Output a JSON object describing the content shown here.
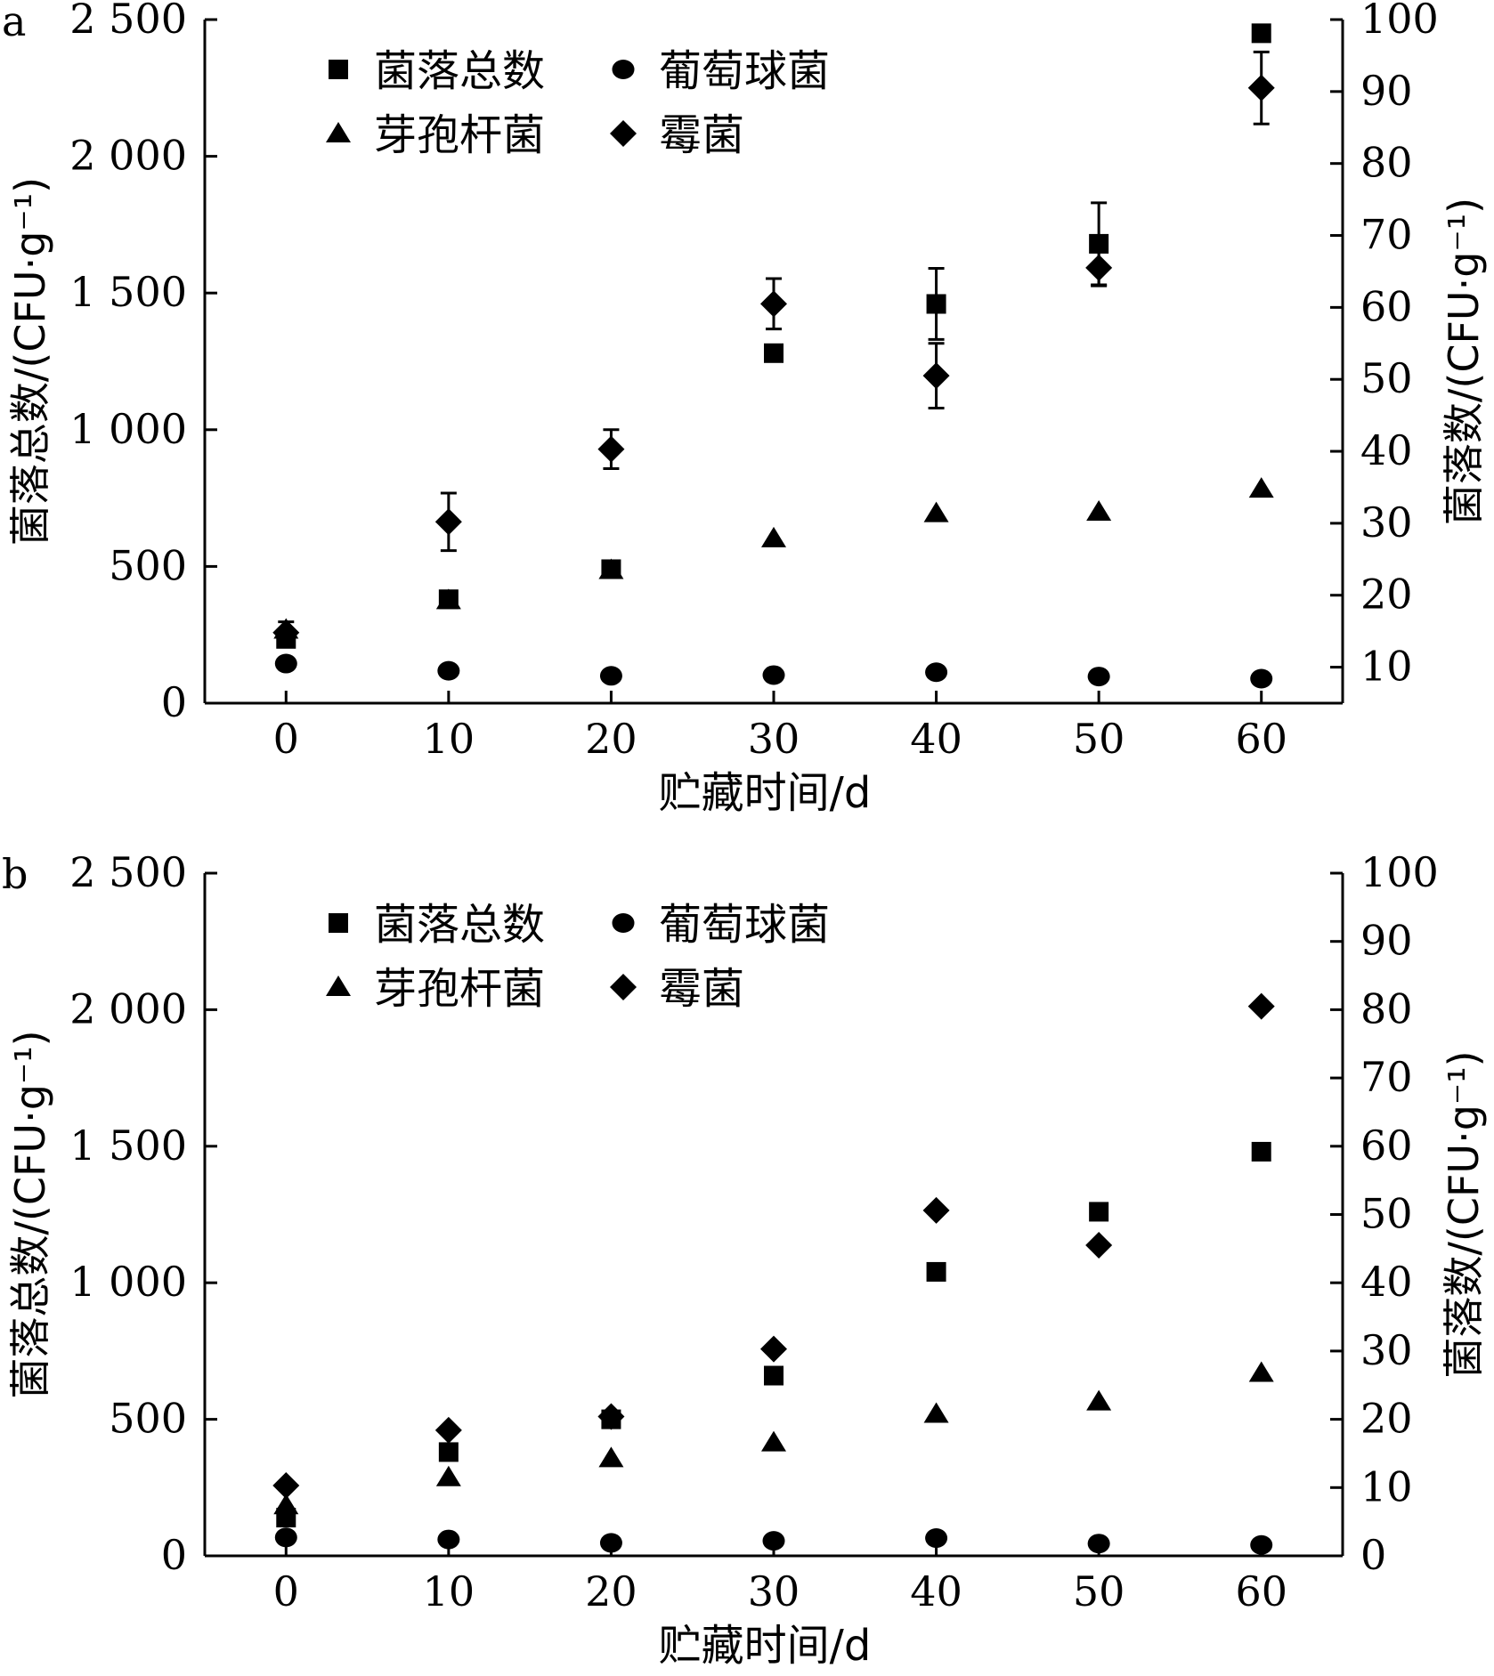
{
  "chart_data": [
    {
      "panel_label": "a",
      "type": "scatter",
      "title": "",
      "xlabel": "贮藏时间/d",
      "ylabel_left": "菌落总数/(CFU·g⁻¹)",
      "ylabel_right": "菌落数/(CFU·g⁻¹)",
      "xlim": [
        -5,
        65
      ],
      "xticks": [
        0,
        10,
        20,
        30,
        40,
        50,
        60
      ],
      "ylim_left": [
        0,
        2500
      ],
      "yticks_left": [
        0,
        500,
        1000,
        1500,
        2000,
        2500
      ],
      "ytick_labels_left": [
        "0",
        "500",
        "1 000",
        "1 500",
        "2 000",
        "2 500"
      ],
      "ylim_right": [
        5,
        100
      ],
      "yticks_right": [
        10,
        20,
        30,
        40,
        50,
        60,
        70,
        80,
        90,
        100
      ],
      "ytick_labels_right": [
        "10",
        "20",
        "30",
        "40",
        "50",
        "60",
        "70",
        "80",
        "90",
        "100"
      ],
      "legend_position": "top-left",
      "grid": false,
      "series": [
        {
          "name": "菌落总数",
          "marker": "square",
          "axis": "left",
          "x": [
            0,
            10,
            20,
            30,
            40,
            50,
            60
          ],
          "y": [
            235,
            380,
            490,
            1280,
            1460,
            1680,
            2450
          ],
          "err": [
            null,
            null,
            null,
            null,
            130,
            150,
            null
          ]
        },
        {
          "name": "葡萄球菌",
          "marker": "circle",
          "axis": "right",
          "x": [
            0,
            10,
            20,
            30,
            40,
            50,
            60
          ],
          "y": [
            10.5,
            9.5,
            8.8,
            8.9,
            9.3,
            8.7,
            8.4
          ],
          "err": [
            null,
            null,
            null,
            null,
            null,
            null,
            null
          ]
        },
        {
          "name": "芽孢杆菌",
          "marker": "triangle",
          "axis": "right",
          "x": [
            0,
            10,
            20,
            30,
            40,
            50,
            60
          ],
          "y": [
            15.2,
            19.3,
            23.5,
            27.9,
            31.4,
            31.6,
            34.8
          ],
          "err": [
            null,
            null,
            null,
            null,
            null,
            null,
            null
          ]
        },
        {
          "name": "霉菌",
          "marker": "diamond",
          "axis": "right",
          "x": [
            0,
            10,
            20,
            30,
            40,
            50,
            60
          ],
          "y": [
            14.8,
            30.2,
            40.3,
            60.5,
            50.5,
            65.5,
            90.5
          ],
          "err": [
            1.5,
            4.0,
            2.7,
            3.5,
            4.5,
            2.5,
            5.0
          ]
        }
      ]
    },
    {
      "panel_label": "b",
      "type": "scatter",
      "title": "",
      "xlabel": "贮藏时间/d",
      "ylabel_left": "菌落总数/(CFU·g⁻¹)",
      "ylabel_right": "菌落数/(CFU·g⁻¹)",
      "xlim": [
        -5,
        65
      ],
      "xticks": [
        0,
        10,
        20,
        30,
        40,
        50,
        60
      ],
      "ylim_left": [
        0,
        2500
      ],
      "yticks_left": [
        0,
        500,
        1000,
        1500,
        2000,
        2500
      ],
      "ytick_labels_left": [
        "0",
        "500",
        "1 000",
        "1 500",
        "2 000",
        "2 500"
      ],
      "ylim_right": [
        0,
        100
      ],
      "yticks_right": [
        0,
        10,
        20,
        30,
        40,
        50,
        60,
        70,
        80,
        90,
        100
      ],
      "ytick_labels_right": [
        "0",
        "10",
        "20",
        "30",
        "40",
        "50",
        "60",
        "70",
        "80",
        "90",
        "100"
      ],
      "legend_position": "top-left",
      "grid": false,
      "series": [
        {
          "name": "菌落总数",
          "marker": "square",
          "axis": "left",
          "x": [
            0,
            10,
            20,
            30,
            40,
            50,
            60
          ],
          "y": [
            140,
            380,
            500,
            660,
            1040,
            1260,
            1480
          ],
          "err": [
            null,
            null,
            null,
            null,
            null,
            null,
            null
          ]
        },
        {
          "name": "葡萄球菌",
          "marker": "circle",
          "axis": "right",
          "x": [
            0,
            10,
            20,
            30,
            40,
            50,
            60
          ],
          "y": [
            2.7,
            2.4,
            1.9,
            2.2,
            2.6,
            1.8,
            1.6
          ],
          "err": [
            null,
            null,
            null,
            null,
            null,
            null,
            null
          ]
        },
        {
          "name": "芽孢杆菌",
          "marker": "triangle",
          "axis": "right",
          "x": [
            0,
            10,
            20,
            30,
            40,
            50,
            60
          ],
          "y": [
            7.4,
            11.5,
            14.3,
            16.6,
            20.8,
            22.6,
            26.8
          ],
          "err": [
            null,
            null,
            null,
            null,
            null,
            null,
            null
          ]
        },
        {
          "name": "霉菌",
          "marker": "diamond",
          "axis": "right",
          "x": [
            0,
            10,
            20,
            30,
            40,
            50,
            60
          ],
          "y": [
            10.3,
            18.4,
            20.4,
            30.3,
            50.6,
            45.5,
            80.5
          ],
          "err": [
            null,
            null,
            null,
            null,
            null,
            null,
            null
          ]
        }
      ]
    }
  ]
}
